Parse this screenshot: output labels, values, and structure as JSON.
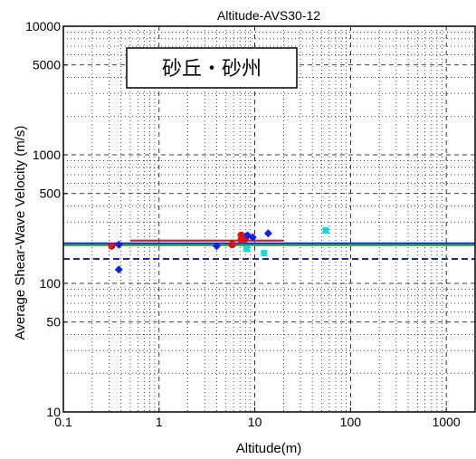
{
  "chart_data": {
    "type": "scatter",
    "title": "Altitude-AVS30-12",
    "xlabel": "Altitude(m)",
    "ylabel": "Average Shear-Wave Velocity (m/s)",
    "x_scale": "log",
    "y_scale": "log",
    "xlim": [
      0.1,
      2000
    ],
    "ylim": [
      10,
      10000
    ],
    "grid": true,
    "x_ticks": [
      {
        "value": 0.1,
        "label": "0.1"
      },
      {
        "value": 1,
        "label": "1"
      },
      {
        "value": 10,
        "label": "10"
      },
      {
        "value": 100,
        "label": "100"
      },
      {
        "value": 1000,
        "label": "1000"
      }
    ],
    "y_ticks": [
      {
        "value": 10,
        "label": "10"
      },
      {
        "value": 50,
        "label": "50"
      },
      {
        "value": 100,
        "label": "100"
      },
      {
        "value": 500,
        "label": "500"
      },
      {
        "value": 1000,
        "label": "1000"
      },
      {
        "value": 5000,
        "label": "5000"
      },
      {
        "value": 10000,
        "label": "10000"
      }
    ],
    "annotation": "砂丘・砂州",
    "series": [
      {
        "marker": "circle",
        "color": "#dd1111",
        "points": [
          [
            0.32,
            195
          ],
          [
            5.8,
            200
          ],
          [
            7.2,
            218
          ],
          [
            7.5,
            232
          ],
          [
            7.2,
            237
          ],
          [
            8.0,
            222
          ]
        ]
      },
      {
        "marker": "diamond",
        "color": "#1122dd",
        "points": [
          [
            0.38,
            200
          ],
          [
            0.38,
            128
          ],
          [
            4.0,
            195
          ],
          [
            8.4,
            236
          ],
          [
            9.5,
            228
          ],
          [
            13.8,
            245
          ]
        ]
      },
      {
        "marker": "square",
        "color": "#11dddd",
        "points": [
          [
            8.2,
            185
          ],
          [
            12.5,
            172
          ],
          [
            55,
            258
          ]
        ]
      }
    ],
    "lines": [
      {
        "style": "solid",
        "color": "#dd1111",
        "x": [
          0.5,
          20
        ],
        "y": [
          215,
          215
        ]
      },
      {
        "style": "solid",
        "color": "#1122dd",
        "x": [
          0.1,
          2000
        ],
        "y": [
          205,
          205
        ]
      },
      {
        "style": "solid",
        "color": "#11bb11",
        "x": [
          0.1,
          2000
        ],
        "y": [
          198,
          198
        ]
      },
      {
        "style": "dashed",
        "color": "#1122dd",
        "x": [
          0.1,
          2000
        ],
        "y": [
          155,
          155
        ]
      }
    ]
  }
}
